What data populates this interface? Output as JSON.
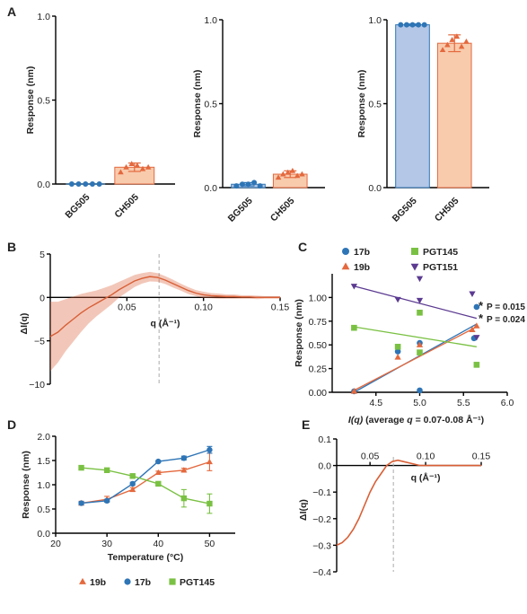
{
  "panel_labels": {
    "a": "A",
    "b": "B",
    "c": "C",
    "d": "D",
    "e": "E"
  },
  "colors": {
    "blue": "#2e75b6",
    "orange": "#e4693e",
    "green": "#7ac143",
    "purple": "#5b3a91",
    "bg505_bar": "#b4c7e7",
    "ch505_bar": "#f8cbad",
    "trace_orange": "#d95f36"
  },
  "chart_data": [
    {
      "id": "A1",
      "type": "bar",
      "categories": [
        "BG505",
        "CH505"
      ],
      "values": [
        0.0,
        0.1
      ],
      "points": [
        [
          0.0,
          0.0,
          0.0,
          0.0,
          0.0
        ],
        [
          0.07,
          0.1,
          0.12,
          0.11,
          0.09,
          0.1
        ]
      ],
      "errors": [
        0.0,
        0.025
      ],
      "ylabel": "Response (nm)",
      "ylim": [
        0,
        1.0
      ],
      "yticks": [
        0.0,
        0.5,
        1.0
      ],
      "ytick_labels": [
        "0.0",
        "0.5",
        "1.0"
      ]
    },
    {
      "id": "A2",
      "type": "bar",
      "categories": [
        "BG505",
        "CH505"
      ],
      "values": [
        0.02,
        0.08
      ],
      "points": [
        [
          0.01,
          0.02,
          0.02,
          0.03,
          0.01
        ],
        [
          0.06,
          0.08,
          0.09,
          0.1,
          0.07,
          0.08
        ]
      ],
      "errors": [
        0.01,
        0.02
      ],
      "ylabel": "Response (nm)",
      "ylim": [
        0,
        1.0
      ],
      "yticks": [
        0.0,
        0.5,
        1.0
      ],
      "ytick_labels": [
        "0.0",
        "0.5",
        "1.0"
      ]
    },
    {
      "id": "A3",
      "type": "bar",
      "categories": [
        "BG505",
        "CH505"
      ],
      "values": [
        0.97,
        0.86
      ],
      "points": [
        [
          0.97,
          0.97,
          0.97,
          0.97,
          0.97
        ],
        [
          0.82,
          0.85,
          0.88,
          0.9,
          0.84,
          0.87
        ]
      ],
      "errors": [
        0.005,
        0.05
      ],
      "ylabel": "Response (nm)",
      "ylim": [
        0,
        1.0
      ],
      "yticks": [
        0.0,
        0.5,
        1.0
      ],
      "ytick_labels": [
        "0.0",
        "0.5",
        "1.0"
      ]
    },
    {
      "id": "B",
      "type": "line",
      "ylabel": "ΔI(q)",
      "xlabel": "q (Å⁻¹)",
      "xlim": [
        0.0,
        0.15
      ],
      "ylim": [
        -10,
        5
      ],
      "xticks": [
        0.05,
        0.1,
        0.15
      ],
      "xtick_labels": [
        "0.05",
        "0.10",
        "0.15"
      ],
      "yticks": [
        -10,
        -5,
        0,
        5
      ],
      "ytick_labels": [
        "−10",
        "−5",
        "0",
        "5"
      ],
      "dashed_line_x": 0.071,
      "series": [
        {
          "x": [
            0.0,
            0.005,
            0.01,
            0.015,
            0.02,
            0.025,
            0.03,
            0.035,
            0.04,
            0.045,
            0.05,
            0.055,
            0.06,
            0.065,
            0.07,
            0.075,
            0.08,
            0.085,
            0.09,
            0.095,
            0.1,
            0.105,
            0.11,
            0.115,
            0.12,
            0.125,
            0.13,
            0.135,
            0.14,
            0.145,
            0.15
          ],
          "y": [
            -4.5,
            -4.0,
            -3.2,
            -2.5,
            -1.8,
            -1.2,
            -0.7,
            -0.2,
            0.3,
            0.9,
            1.4,
            1.9,
            2.2,
            2.4,
            2.3,
            2.0,
            1.6,
            1.2,
            0.8,
            0.5,
            0.3,
            0.2,
            0.15,
            0.1,
            0.1,
            0.05,
            0.05,
            0.0,
            0.0,
            0.0,
            0.0
          ],
          "err": [
            4.0,
            3.5,
            3.0,
            2.6,
            2.2,
            1.8,
            1.5,
            1.3,
            1.1,
            0.9,
            0.8,
            0.7,
            0.6,
            0.55,
            0.5,
            0.45,
            0.45,
            0.4,
            0.4,
            0.35,
            0.35,
            0.3,
            0.3,
            0.25,
            0.25,
            0.2,
            0.2,
            0.2,
            0.15,
            0.15,
            0.15
          ]
        }
      ]
    },
    {
      "id": "C",
      "type": "scatter",
      "ylabel": "Response (nm)",
      "xlabel_parts": [
        "I(q)",
        " (average ",
        "q",
        " = 0.07-0.08 Å⁻¹)"
      ],
      "xlim": [
        4.0,
        6.0
      ],
      "ylim": [
        0.0,
        1.25
      ],
      "xticks": [
        4.5,
        5.0,
        5.5,
        6.0
      ],
      "xtick_labels": [
        "4.5",
        "5.0",
        "5.5",
        "6.0"
      ],
      "yticks": [
        0.0,
        0.25,
        0.5,
        0.75,
        1.0
      ],
      "ytick_labels": [
        "0.00",
        "0.25",
        "0.50",
        "0.75",
        "1.00"
      ],
      "series": [
        {
          "name": "17b",
          "marker": "circle",
          "color_key": "blue",
          "x": [
            4.25,
            4.75,
            5.0,
            5.0,
            5.62,
            5.65
          ],
          "y": [
            0.01,
            0.43,
            0.52,
            0.02,
            0.57,
            0.9
          ],
          "fit": [
            [
              4.25,
              0.0
            ],
            [
              5.65,
              0.72
            ]
          ]
        },
        {
          "name": "19b",
          "marker": "triangle",
          "color_key": "orange",
          "x": [
            4.25,
            4.75,
            5.0,
            5.6,
            5.65
          ],
          "y": [
            0.01,
            0.37,
            0.5,
            0.66,
            0.7
          ],
          "fit": [
            [
              4.25,
              0.02
            ],
            [
              5.65,
              0.69
            ]
          ]
        },
        {
          "name": "PGT145",
          "marker": "square",
          "color_key": "green",
          "x": [
            4.25,
            4.75,
            5.0,
            5.0,
            5.65
          ],
          "y": [
            0.68,
            0.48,
            0.84,
            0.42,
            0.29
          ],
          "fit": [
            [
              4.25,
              0.69
            ],
            [
              5.65,
              0.48
            ]
          ]
        },
        {
          "name": "PGT151",
          "marker": "tri-down",
          "color_key": "purple",
          "x": [
            4.25,
            4.75,
            5.0,
            5.0,
            5.6,
            5.65
          ],
          "y": [
            1.12,
            0.98,
            1.2,
            0.97,
            1.04,
            0.58
          ],
          "fit": [
            [
              4.25,
              1.12
            ],
            [
              5.65,
              0.78
            ]
          ]
        }
      ],
      "annotations": [
        {
          "text": "P = 0.015",
          "star_color_key": "blue"
        },
        {
          "text": "P = 0.024",
          "star_color_key": "orange"
        }
      ]
    },
    {
      "id": "D",
      "type": "line",
      "ylabel": "Response (nm)",
      "xlabel": "Temperature (°C)",
      "xlim": [
        20,
        55
      ],
      "ylim": [
        0.0,
        2.0
      ],
      "xticks": [
        20,
        30,
        40,
        50
      ],
      "xtick_labels": [
        "20",
        "30",
        "40",
        "50"
      ],
      "yticks": [
        0.0,
        0.5,
        1.0,
        1.5,
        2.0
      ],
      "ytick_labels": [
        "0.0",
        "0.5",
        "1.0",
        "1.5",
        "2.0"
      ],
      "series": [
        {
          "name": "19b",
          "marker": "triangle",
          "color_key": "orange",
          "x": [
            25,
            30,
            35,
            40,
            45,
            50
          ],
          "y": [
            0.62,
            0.7,
            0.9,
            1.25,
            1.3,
            1.47
          ],
          "err": [
            0.04,
            0.06,
            0.04,
            0.03,
            0.04,
            0.18
          ]
        },
        {
          "name": "17b",
          "marker": "circle",
          "color_key": "blue",
          "x": [
            25,
            30,
            35,
            40,
            45,
            50
          ],
          "y": [
            0.62,
            0.67,
            1.02,
            1.48,
            1.55,
            1.72
          ],
          "err": [
            0.03,
            0.03,
            0.03,
            0.02,
            0.04,
            0.07
          ]
        },
        {
          "name": "PGT145",
          "marker": "square",
          "color_key": "green",
          "x": [
            25,
            30,
            35,
            40,
            45,
            50
          ],
          "y": [
            1.35,
            1.3,
            1.18,
            1.02,
            0.72,
            0.61
          ],
          "err": [
            0.02,
            0.02,
            0.02,
            0.02,
            0.18,
            0.2
          ]
        }
      ]
    },
    {
      "id": "E",
      "type": "line",
      "ylabel": "ΔI(q)",
      "xlabel": "q (Å⁻¹)",
      "xlim": [
        0.02,
        0.15
      ],
      "ylim": [
        -0.4,
        0.1
      ],
      "xticks": [
        0.05,
        0.1,
        0.15
      ],
      "xtick_labels": [
        "0.05",
        "0.10",
        "0.15"
      ],
      "yticks": [
        -0.4,
        -0.3,
        -0.2,
        -0.1,
        0.0,
        0.1
      ],
      "ytick_labels": [
        "−0.4",
        "−0.3",
        "−0.2",
        "−0.1",
        "0.0",
        "0.1"
      ],
      "dashed_line_x": 0.071,
      "series": [
        {
          "x": [
            0.02,
            0.025,
            0.03,
            0.035,
            0.04,
            0.045,
            0.05,
            0.055,
            0.06,
            0.065,
            0.07,
            0.075,
            0.08,
            0.085,
            0.09,
            0.095,
            0.1,
            0.11,
            0.12,
            0.13,
            0.14,
            0.15
          ],
          "y": [
            -0.3,
            -0.29,
            -0.27,
            -0.24,
            -0.2,
            -0.15,
            -0.1,
            -0.06,
            -0.03,
            0.0,
            0.015,
            0.02,
            0.015,
            0.01,
            0.005,
            0.0,
            0.0,
            0.0,
            0.0,
            0.0,
            0.0,
            0.0
          ]
        }
      ]
    }
  ]
}
